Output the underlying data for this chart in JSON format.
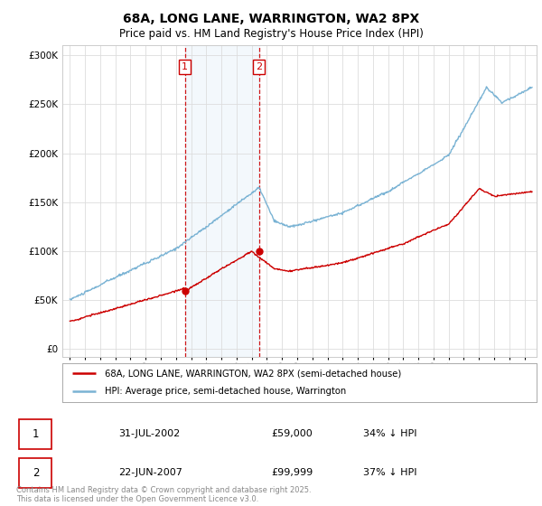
{
  "title_line1": "68A, LONG LANE, WARRINGTON, WA2 8PX",
  "title_line2": "Price paid vs. HM Land Registry's House Price Index (HPI)",
  "background_color": "#ffffff",
  "plot_bg_color": "#ffffff",
  "grid_color": "#dddddd",
  "hpi_color": "#7ab3d4",
  "price_color": "#cc0000",
  "sale1_date_label": "31-JUL-2002",
  "sale1_price_label": "£59,000",
  "sale1_hpi_label": "34% ↓ HPI",
  "sale2_date_label": "22-JUN-2007",
  "sale2_price_label": "£99,999",
  "sale2_hpi_label": "37% ↓ HPI",
  "legend_label1": "68A, LONG LANE, WARRINGTON, WA2 8PX (semi-detached house)",
  "legend_label2": "HPI: Average price, semi-detached house, Warrington",
  "footnote": "Contains HM Land Registry data © Crown copyright and database right 2025.\nThis data is licensed under the Open Government Licence v3.0.",
  "sale1_year": 2002.58,
  "sale2_year": 2007.47,
  "sale1_price": 59000,
  "sale2_price": 99999,
  "ylim_max": 310000,
  "ylim_min": -8000,
  "xmin": 1994.5,
  "xmax": 2025.8
}
